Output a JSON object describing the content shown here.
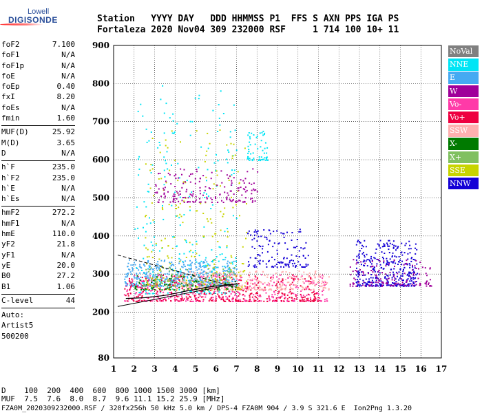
{
  "logo": {
    "top": "Lowell",
    "bottom": "DIGISONDE"
  },
  "header": {
    "line1": "Station   YYYY DAY   DDD HHMMSS P1  FFS S AXN PPS IGA PS",
    "line2": "Fortaleza 2020 Nov04 309 232000 RSF     1 714 100 10+ 11"
  },
  "sidebar": {
    "group1": [
      {
        "label": "foF2",
        "value": "7.100"
      },
      {
        "label": "foF1",
        "value": "N/A"
      },
      {
        "label": "foF1p",
        "value": "N/A"
      },
      {
        "label": "foE",
        "value": "N/A"
      },
      {
        "label": "foEp",
        "value": "0.40"
      },
      {
        "label": "fxI",
        "value": "8.20"
      },
      {
        "label": "foEs",
        "value": "N/A"
      },
      {
        "label": "fmin",
        "value": "1.60"
      }
    ],
    "group2": [
      {
        "label": "MUF(D)",
        "value": "25.92"
      },
      {
        "label": "M(D)",
        "value": "3.65"
      },
      {
        "label": "D",
        "value": "N/A"
      }
    ],
    "group3": [
      {
        "label": "h`F",
        "value": "235.0"
      },
      {
        "label": "h`F2",
        "value": "235.0"
      },
      {
        "label": "h`E",
        "value": "N/A"
      },
      {
        "label": "h`Es",
        "value": "N/A"
      }
    ],
    "group4": [
      {
        "label": "hmF2",
        "value": "272.2"
      },
      {
        "label": "hmF1",
        "value": "N/A"
      },
      {
        "label": "hmE",
        "value": "110.0"
      },
      {
        "label": "yF2",
        "value": "21.8"
      },
      {
        "label": "yF1",
        "value": "N/A"
      },
      {
        "label": "yE",
        "value": "20.0"
      },
      {
        "label": "B0",
        "value": "27.2"
      },
      {
        "label": "B1",
        "value": "1.06"
      }
    ],
    "clevel": {
      "label": "C-level",
      "value": "44"
    },
    "auto": [
      "Auto:",
      "Artist5",
      "500200"
    ]
  },
  "legend": [
    {
      "label": "NoVal",
      "color": "#808080"
    },
    {
      "label": "NNE",
      "color": "#00e5f5"
    },
    {
      "label": "E",
      "color": "#45aaf2"
    },
    {
      "label": "W",
      "color": "#a0009a"
    },
    {
      "label": "Vo-",
      "color": "#ff3aa8"
    },
    {
      "label": "Vo+",
      "color": "#ee0040"
    },
    {
      "label": "SSW",
      "color": "#ffb0b0"
    },
    {
      "label": "X-",
      "color": "#007a00"
    },
    {
      "label": "X+",
      "color": "#80c060"
    },
    {
      "label": "SSE",
      "color": "#c8d400"
    },
    {
      "label": "NNW",
      "color": "#1400d6"
    }
  ],
  "footer": {
    "line1": "D    100  200  400  600  800 1000 1500 3000 [km]",
    "line2": "MUF  7.5  7.6  8.0  8.7  9.6 11.1 15.2 25.9 [MHz]",
    "line3": "FZA0M_2020309232000.RSF / 320fx256h 50 kHz 5.0 km / DPS-4 FZA0M 904 / 3.9 S 321.6 E  Ion2Png 1.3.20"
  },
  "chart_data": {
    "type": "scatter",
    "x_ticks": [
      "1",
      "2",
      "3",
      "4",
      "5",
      "6",
      "7",
      "8",
      "9",
      "10",
      "11",
      "12",
      "13",
      "14",
      "15",
      "16",
      "17"
    ],
    "y_ticks": [
      "80",
      "200",
      "300",
      "400",
      "500",
      "600",
      "700",
      "800",
      "900"
    ],
    "xlim": [
      1,
      17
    ],
    "ylim": [
      80,
      900
    ],
    "grid": true,
    "legend_position": "right",
    "clusters": [
      {
        "series": "E",
        "x": [
          1.5,
          7.0
        ],
        "y": [
          270,
          340
        ],
        "n": 520
      },
      {
        "series": "NNE",
        "x": [
          2.0,
          7.0
        ],
        "y": [
          250,
          800
        ],
        "n": 260
      },
      {
        "series": "Vo-",
        "x": [
          1.5,
          11.5
        ],
        "y": [
          230,
          300
        ],
        "n": 420
      },
      {
        "series": "Vo+",
        "x": [
          1.5,
          11.0
        ],
        "y": [
          230,
          300
        ],
        "n": 360
      },
      {
        "series": "SSW",
        "x": [
          4.0,
          11.5
        ],
        "y": [
          260,
          310
        ],
        "n": 300
      },
      {
        "series": "SSE",
        "x": [
          2.5,
          7.5
        ],
        "y": [
          260,
          680
        ],
        "n": 220
      },
      {
        "series": "W",
        "x": [
          3.0,
          8.0
        ],
        "y": [
          490,
          580
        ],
        "n": 180
      },
      {
        "series": "NNW",
        "x": [
          12.8,
          15.8
        ],
        "y": [
          270,
          390
        ],
        "n": 360
      },
      {
        "series": "W",
        "x": [
          12.5,
          16.5
        ],
        "y": [
          270,
          340
        ],
        "n": 140
      },
      {
        "series": "X-",
        "x": [
          2.0,
          7.0
        ],
        "y": [
          260,
          300
        ],
        "n": 90
      },
      {
        "series": "X+",
        "x": [
          2.0,
          7.0
        ],
        "y": [
          270,
          320
        ],
        "n": 90
      },
      {
        "series": "NNE",
        "x": [
          7.5,
          8.5
        ],
        "y": [
          600,
          680
        ],
        "n": 60
      },
      {
        "series": "NNW",
        "x": [
          7.5,
          10.5
        ],
        "y": [
          320,
          420
        ],
        "n": 140
      }
    ],
    "trace_x": [
      1.6,
      2.5,
      3.5,
      4.5,
      5.5,
      6.5,
      7.1
    ],
    "trace_y": [
      236,
      238,
      244,
      255,
      265,
      272,
      274
    ],
    "dashed_upper": {
      "x": [
        1.2,
        7.0
      ],
      "y": [
        350,
        265
      ]
    },
    "dashed_lower": {
      "x": [
        1.2,
        7.0
      ],
      "y": [
        215,
        275
      ]
    }
  }
}
